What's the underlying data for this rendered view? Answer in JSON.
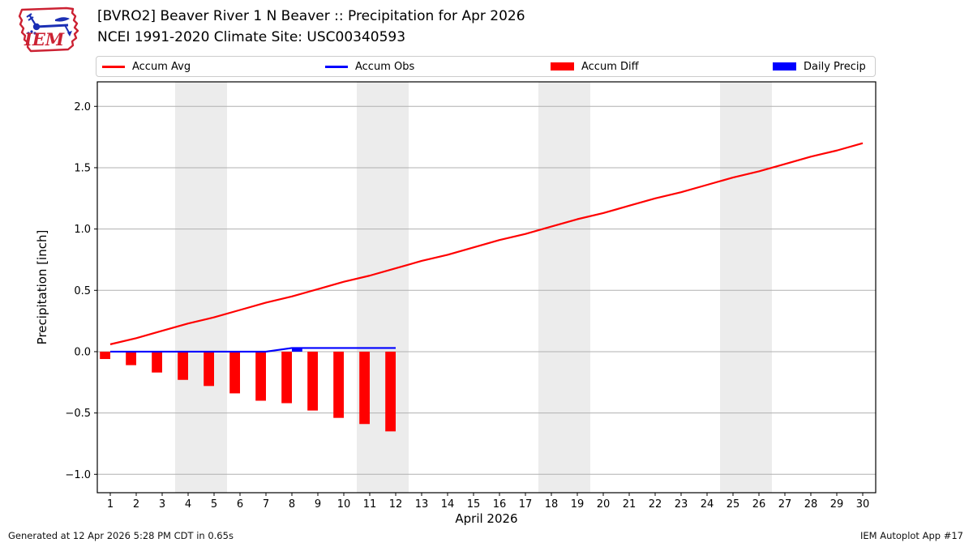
{
  "header": {
    "title_line1": "[BVRO2] Beaver River 1 N Beaver :: Precipitation for Apr 2026",
    "title_line2": "NCEI 1991-2020 Climate Site: USC00340593"
  },
  "logo": {
    "text": "IEM"
  },
  "legend": {
    "items": [
      {
        "label": "Accum Avg",
        "swatch": "line",
        "color": "#ff0000"
      },
      {
        "label": "Accum Obs",
        "swatch": "line",
        "color": "#0000ff"
      },
      {
        "label": "Accum Diff",
        "swatch": "patch",
        "color": "#ff0000"
      },
      {
        "label": "Daily Precip",
        "swatch": "patch",
        "color": "#0000ff"
      }
    ]
  },
  "chart_data": {
    "type": "line+bar",
    "title": "[BVRO2] Beaver River 1 N Beaver :: Precipitation for Apr 2026",
    "subtitle": "NCEI 1991-2020 Climate Site: USC00340593",
    "xlabel": "April 2026",
    "ylabel": "Precipitation [inch]",
    "xlim": [
      0.5,
      30.5
    ],
    "ylim": [
      -1.15,
      2.2
    ],
    "xticks": [
      1,
      2,
      3,
      4,
      5,
      6,
      7,
      8,
      9,
      10,
      11,
      12,
      13,
      14,
      15,
      16,
      17,
      18,
      19,
      20,
      21,
      22,
      23,
      24,
      25,
      26,
      27,
      28,
      29,
      30
    ],
    "yticks": [
      -1.0,
      -0.5,
      0.0,
      0.5,
      1.0,
      1.5,
      2.0
    ],
    "grid": "horizontal",
    "grid_color": "#b0b0b0",
    "band_color": "#ececec",
    "weekend_bands": [
      [
        3.5,
        5.5
      ],
      [
        10.5,
        12.5
      ],
      [
        17.5,
        19.5
      ],
      [
        24.5,
        26.5
      ]
    ],
    "bar_width_days": 0.4,
    "series": [
      {
        "name": "Accum Avg",
        "type": "line",
        "color": "#ff0000",
        "x": [
          1,
          2,
          3,
          4,
          5,
          6,
          7,
          8,
          9,
          10,
          11,
          12,
          13,
          14,
          15,
          16,
          17,
          18,
          19,
          20,
          21,
          22,
          23,
          24,
          25,
          26,
          27,
          28,
          29,
          30
        ],
        "values": [
          0.06,
          0.11,
          0.17,
          0.23,
          0.28,
          0.34,
          0.4,
          0.45,
          0.51,
          0.57,
          0.62,
          0.68,
          0.74,
          0.79,
          0.85,
          0.91,
          0.96,
          1.02,
          1.08,
          1.13,
          1.19,
          1.25,
          1.3,
          1.36,
          1.42,
          1.47,
          1.53,
          1.59,
          1.64,
          1.7
        ]
      },
      {
        "name": "Accum Obs",
        "type": "line",
        "color": "#0000ff",
        "x": [
          1,
          2,
          3,
          4,
          5,
          6,
          7,
          8,
          9,
          10,
          11,
          12
        ],
        "values": [
          0,
          0,
          0,
          0,
          0,
          0,
          0,
          0.03,
          0.03,
          0.03,
          0.03,
          0.03
        ]
      },
      {
        "name": "Accum Diff",
        "type": "bar",
        "color": "#ff0000",
        "align": "left",
        "x": [
          1,
          2,
          3,
          4,
          5,
          6,
          7,
          8,
          9,
          10,
          11,
          12
        ],
        "values": [
          -0.06,
          -0.11,
          -0.17,
          -0.23,
          -0.28,
          -0.34,
          -0.4,
          -0.42,
          -0.48,
          -0.54,
          -0.59,
          -0.65
        ]
      },
      {
        "name": "Daily Precip",
        "type": "bar",
        "color": "#0000ff",
        "align": "right",
        "x": [
          8
        ],
        "values": [
          0.03
        ]
      }
    ]
  },
  "footer": {
    "left": "Generated at 12 Apr 2026 5:28 PM CDT in 0.65s",
    "right": "IEM Autoplot App #17"
  }
}
